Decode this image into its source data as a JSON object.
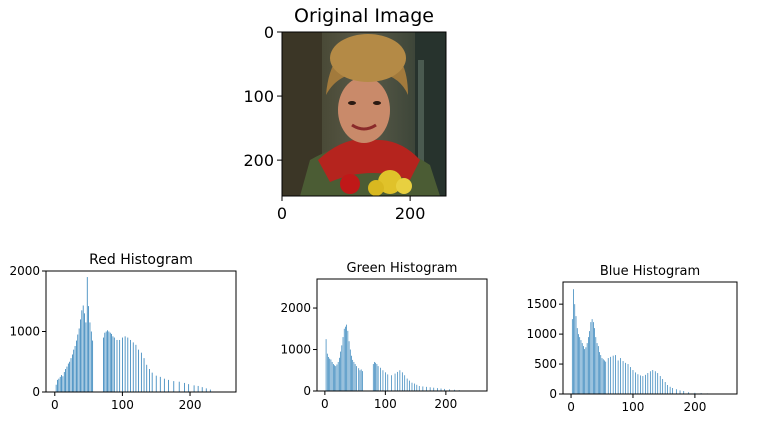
{
  "colors": {
    "bar": "#1f77b4",
    "axis": "#000000"
  },
  "image_panel": {
    "title": "Original Image",
    "x_ticks": [
      0,
      200
    ],
    "y_ticks": [
      0,
      100,
      200
    ],
    "xlim": [
      0,
      256
    ],
    "ylim": [
      0,
      256
    ]
  },
  "chart_data": [
    {
      "type": "bar",
      "title": "Red Histogram",
      "xlabel": "",
      "ylabel": "",
      "xlim": [
        -13,
        268
      ],
      "ylim": [
        0,
        2000
      ],
      "x_ticks": [
        0,
        100,
        200
      ],
      "y_ticks": [
        0,
        1000,
        2000
      ],
      "x": [
        2,
        4,
        6,
        8,
        10,
        12,
        14,
        16,
        18,
        20,
        22,
        24,
        26,
        28,
        30,
        32,
        34,
        36,
        38,
        40,
        42,
        44,
        46,
        48,
        50,
        52,
        54,
        56,
        72,
        74,
        76,
        78,
        80,
        82,
        84,
        86,
        88,
        92,
        96,
        100,
        104,
        108,
        112,
        116,
        120,
        124,
        128,
        132,
        136,
        140,
        144,
        150,
        156,
        162,
        168,
        176,
        184,
        192,
        198,
        206,
        212,
        218,
        224,
        230
      ],
      "values": [
        120,
        200,
        220,
        250,
        280,
        260,
        330,
        380,
        420,
        470,
        500,
        560,
        620,
        700,
        760,
        850,
        950,
        1050,
        1200,
        1350,
        1430,
        1300,
        1150,
        1900,
        1420,
        1150,
        1000,
        850,
        900,
        980,
        1000,
        1020,
        1000,
        980,
        960,
        920,
        900,
        860,
        860,
        900,
        920,
        900,
        860,
        820,
        780,
        700,
        650,
        560,
        450,
        380,
        320,
        270,
        250,
        220,
        200,
        180,
        170,
        150,
        130,
        110,
        100,
        80,
        60,
        40
      ]
    },
    {
      "type": "bar",
      "title": "Green Histogram",
      "xlabel": "",
      "ylabel": "",
      "xlim": [
        -13,
        268
      ],
      "ylim": [
        0,
        2700
      ],
      "x_ticks": [
        0,
        100,
        200
      ],
      "y_ticks": [
        0,
        1000,
        2000
      ],
      "x": [
        2,
        4,
        6,
        8,
        10,
        12,
        14,
        16,
        18,
        20,
        22,
        24,
        26,
        28,
        30,
        32,
        34,
        36,
        38,
        40,
        42,
        44,
        46,
        48,
        50,
        52,
        56,
        58,
        60,
        62,
        80,
        82,
        84,
        86,
        88,
        92,
        96,
        100,
        104,
        110,
        116,
        120,
        124,
        128,
        132,
        136,
        140,
        144,
        148,
        152,
        156,
        162,
        168,
        174,
        180,
        186,
        192,
        198,
        206,
        214,
        222
      ],
      "values": [
        1250,
        900,
        820,
        780,
        760,
        700,
        650,
        620,
        600,
        640,
        700,
        800,
        950,
        1100,
        1300,
        1500,
        1550,
        1600,
        1450,
        1200,
        1000,
        850,
        750,
        700,
        650,
        600,
        550,
        500,
        520,
        480,
        650,
        700,
        680,
        650,
        600,
        560,
        500,
        450,
        400,
        380,
        420,
        460,
        500,
        450,
        380,
        300,
        250,
        200,
        180,
        150,
        120,
        110,
        100,
        90,
        80,
        70,
        60,
        50,
        40,
        30,
        20
      ]
    },
    {
      "type": "bar",
      "title": "Blue Histogram",
      "xlabel": "",
      "ylabel": "",
      "xlim": [
        -13,
        268
      ],
      "ylim": [
        0,
        1870
      ],
      "x_ticks": [
        0,
        100,
        200
      ],
      "y_ticks": [
        0,
        500,
        1000,
        1500
      ],
      "x": [
        2,
        4,
        6,
        8,
        10,
        12,
        14,
        16,
        18,
        20,
        22,
        24,
        26,
        28,
        30,
        32,
        34,
        36,
        38,
        40,
        42,
        44,
        46,
        48,
        50,
        52,
        54,
        56,
        60,
        64,
        68,
        72,
        76,
        80,
        84,
        88,
        92,
        96,
        100,
        104,
        108,
        112,
        116,
        120,
        124,
        128,
        132,
        136,
        140,
        144,
        148,
        152,
        156,
        160,
        164,
        170,
        176,
        182,
        190,
        200,
        210,
        220,
        230
      ],
      "values": [
        1250,
        1750,
        1500,
        1300,
        1100,
        1000,
        950,
        900,
        850,
        800,
        750,
        780,
        850,
        950,
        1050,
        1200,
        1250,
        1200,
        1100,
        950,
        850,
        800,
        700,
        650,
        600,
        580,
        560,
        540,
        600,
        620,
        640,
        650,
        560,
        600,
        550,
        520,
        500,
        450,
        400,
        360,
        330,
        310,
        300,
        320,
        350,
        380,
        400,
        380,
        350,
        300,
        250,
        200,
        150,
        120,
        100,
        80,
        60,
        50,
        30,
        20,
        15,
        10,
        5
      ]
    }
  ]
}
